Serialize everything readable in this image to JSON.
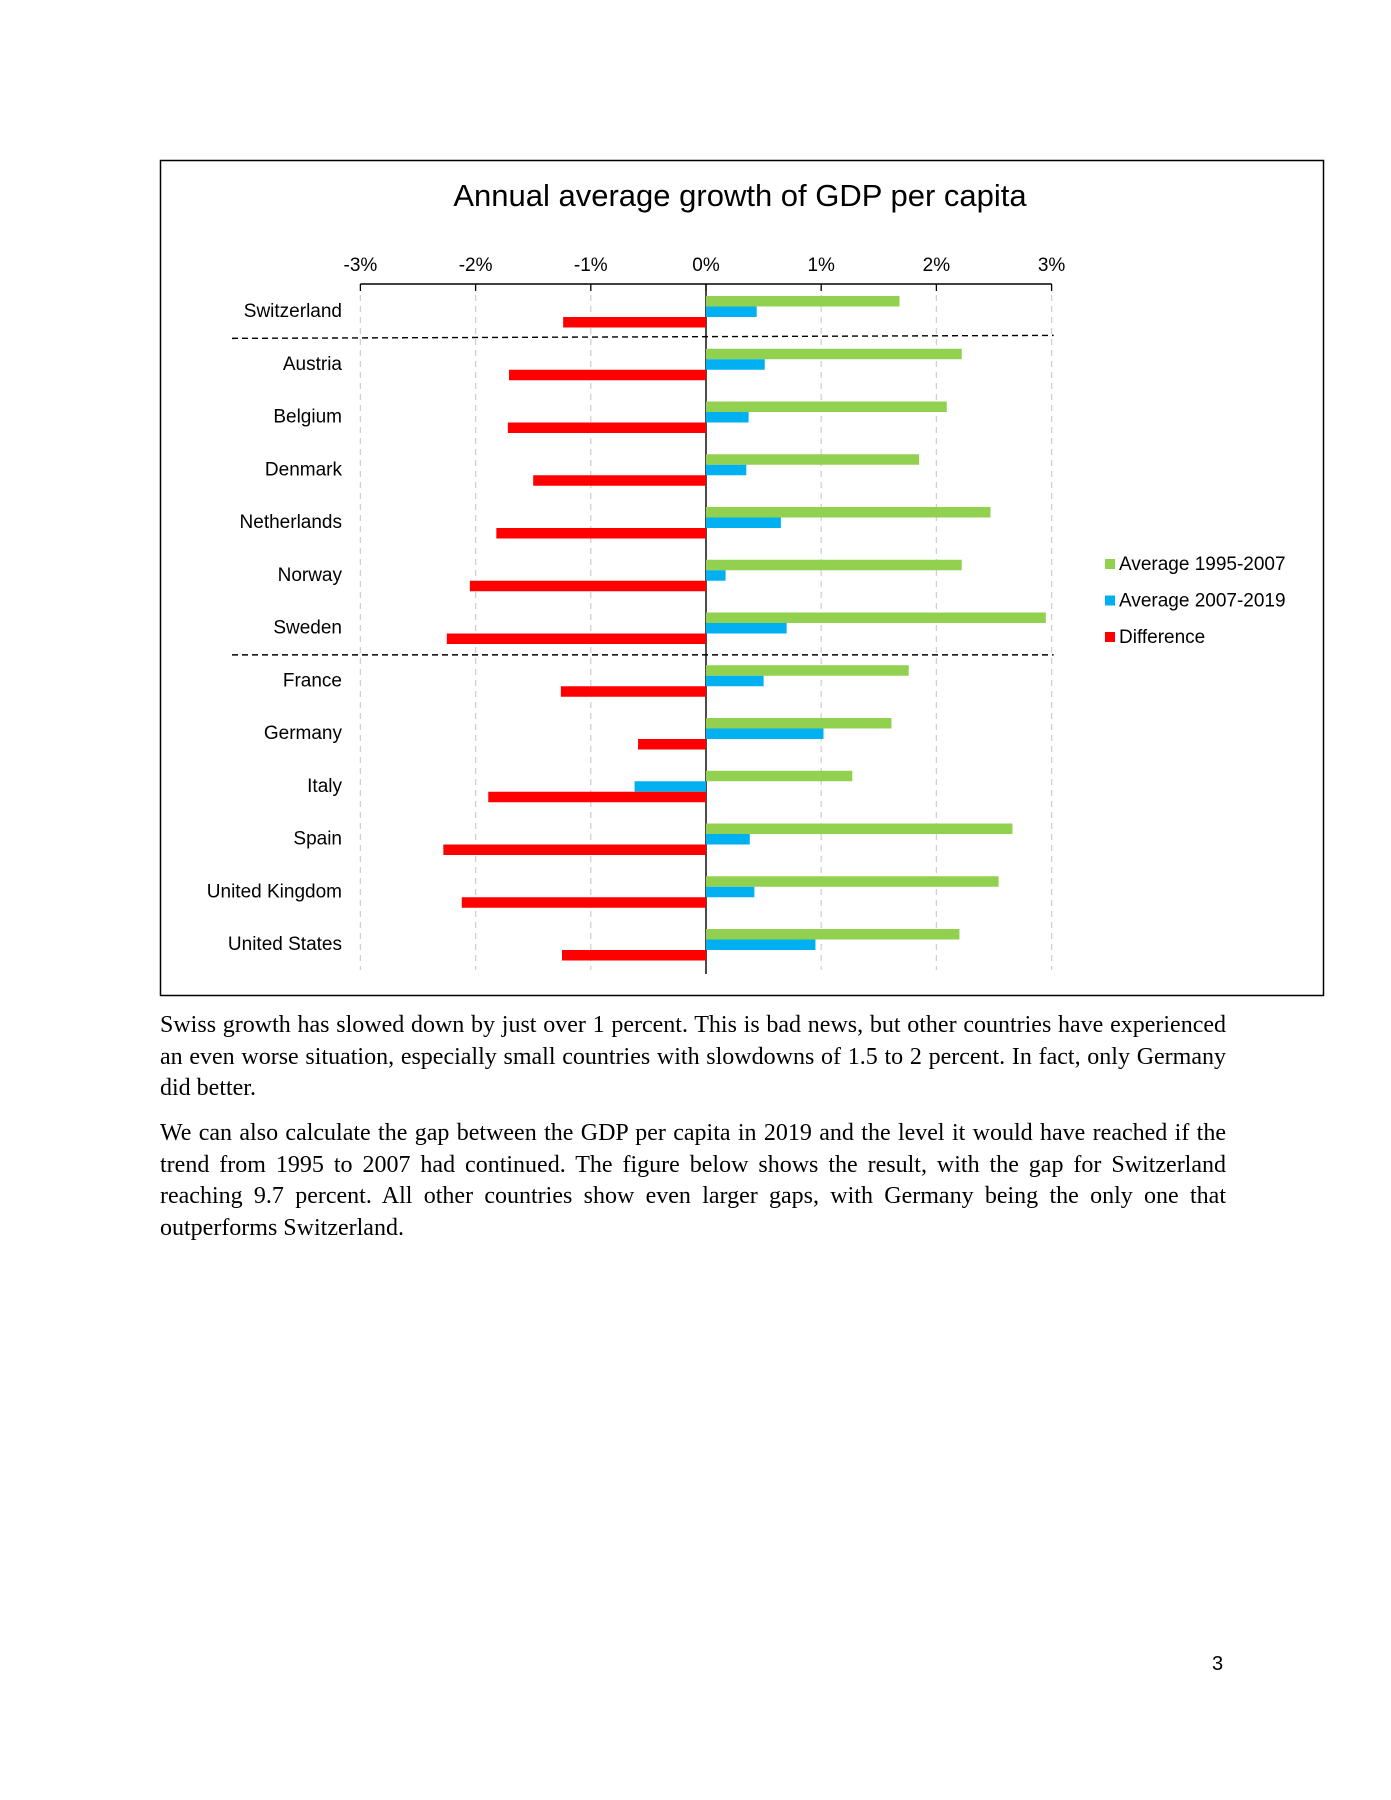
{
  "chart_data": {
    "type": "bar",
    "orientation": "horizontal",
    "title": "Annual average growth of GDP per capita",
    "xlabel": "",
    "ylabel": "",
    "xlim": [
      -3,
      3
    ],
    "x_ticks": [
      "-3%",
      "-2%",
      "-1%",
      "0%",
      "1%",
      "2%",
      "3%"
    ],
    "x_tick_values": [
      -3,
      -2,
      -1,
      0,
      1,
      2,
      3
    ],
    "grid": "vertical dashed",
    "legend_position": "right",
    "categories": [
      "Switzerland",
      "Austria",
      "Belgium",
      "Denmark",
      "Netherlands",
      "Norway",
      "Sweden",
      "France",
      "Germany",
      "Italy",
      "Spain",
      "United Kingdom",
      "United States"
    ],
    "series": [
      {
        "name": "Average 1995-2007",
        "color": "#92d050",
        "values": [
          1.68,
          2.22,
          2.09,
          1.85,
          2.47,
          2.22,
          2.95,
          1.76,
          1.61,
          1.27,
          2.66,
          2.54,
          2.2
        ]
      },
      {
        "name": "Average 2007-2019",
        "color": "#00b0f0",
        "values": [
          0.44,
          0.51,
          0.37,
          0.35,
          0.65,
          0.17,
          0.7,
          0.5,
          1.02,
          -0.62,
          0.38,
          0.42,
          0.95
        ]
      },
      {
        "name": "Difference",
        "color": "#ff0000",
        "values": [
          -1.24,
          -1.71,
          -1.72,
          -1.5,
          -1.82,
          -2.05,
          -2.25,
          -1.26,
          -0.59,
          -1.89,
          -2.28,
          -2.12,
          -1.25
        ]
      }
    ],
    "group_separators_after": [
      "Switzerland",
      "Sweden"
    ]
  },
  "text": {
    "paragraph1": "Swiss growth has slowed down by just over 1 percent. This is bad news, but other countries have experienced an even worse situation, especially small countries with slowdowns of 1.5 to 2 percent. In fact, only Germany did better.",
    "paragraph2": "We can also calculate the gap between the GDP per capita in 2019 and the level it would have reached if the trend from 1995 to 2007 had continued. The figure below shows the result, with the gap for Switzerland reaching 9.7 percent. All other countries show even larger gaps, with Germany being the only one that outperforms Switzerland.",
    "page_number": "3"
  }
}
